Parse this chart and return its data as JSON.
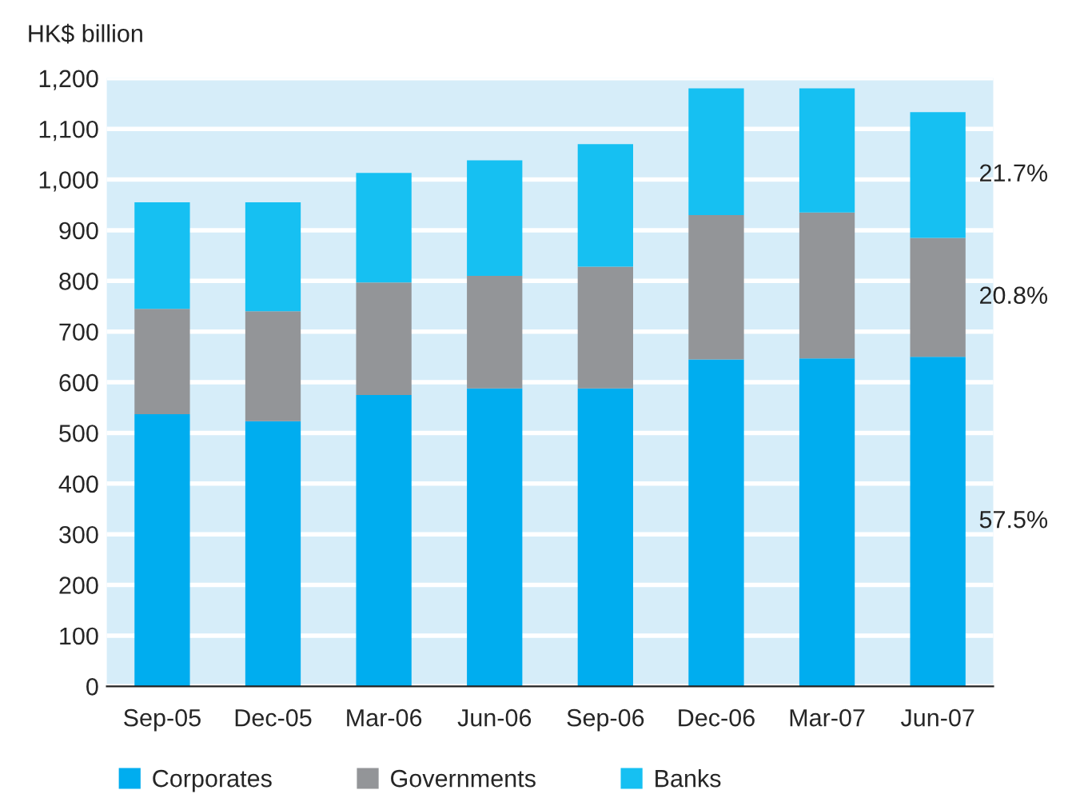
{
  "chart_data": {
    "type": "bar",
    "stacked": true,
    "ylabel": "HK$ billion",
    "categories": [
      "Sep-05",
      "Dec-05",
      "Mar-06",
      "Jun-06",
      "Sep-06",
      "Dec-06",
      "Mar-07",
      "Jun-07"
    ],
    "series": [
      {
        "name": "Corporates",
        "color": "#00adef",
        "values": [
          537,
          523,
          575,
          588,
          588,
          645,
          647,
          650
        ]
      },
      {
        "name": "Governments",
        "color": "#939598",
        "values": [
          208,
          217,
          222,
          222,
          240,
          285,
          288,
          235
        ]
      },
      {
        "name": "Banks",
        "color": "#16c0f2",
        "values": [
          210,
          215,
          216,
          228,
          242,
          250,
          245,
          248
        ]
      }
    ],
    "ylim": [
      0,
      1200
    ],
    "yticks": [
      0,
      {
        "value": 100,
        "label": "100"
      },
      {
        "value": 200,
        "label": "200"
      },
      {
        "value": 300,
        "label": "300"
      },
      {
        "value": 400,
        "label": "400"
      },
      {
        "value": 500,
        "label": "500"
      },
      {
        "value": 600,
        "label": "600"
      },
      {
        "value": 700,
        "label": "700"
      },
      {
        "value": 800,
        "label": "800"
      },
      {
        "value": 900,
        "label": "900"
      },
      {
        "value": 1000,
        "label": "1,000"
      },
      {
        "value": 1100,
        "label": "1,100"
      },
      {
        "value": 1200,
        "label": "1,200"
      }
    ],
    "annotations": [
      "57.5%",
      "20.8%",
      "21.7%"
    ],
    "grid": "y",
    "legend": "bottom"
  }
}
